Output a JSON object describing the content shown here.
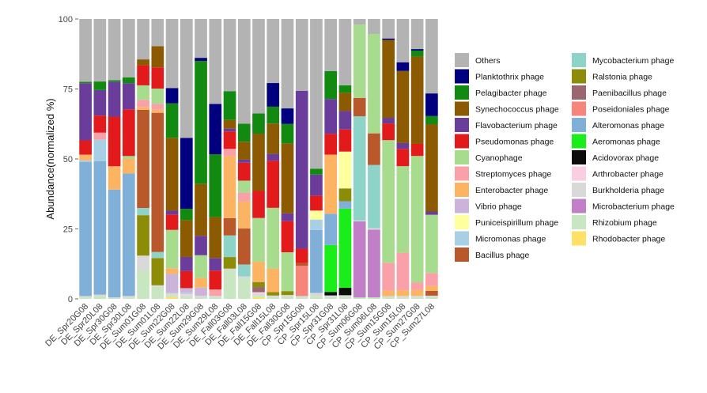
{
  "chart_data": {
    "type": "bar",
    "stacked": true,
    "ylabel": "Abundance(normalized %)",
    "xlabel": "",
    "ylim": [
      0,
      100
    ],
    "yticks": [
      0,
      25,
      50,
      75,
      100
    ],
    "grid": false,
    "legend_position": "right",
    "categories": [
      "DE_Spr20G08",
      "DE_Spr20L08",
      "DE_Spr30G08",
      "DE_Spr30L08",
      "DE_Sum01G08",
      "DE_Sum01L08",
      "DE_Sum22G08",
      "DE_Sum22L08",
      "DE_Sum29G08",
      "DE_Sum29L08",
      "DE_Fall03G08",
      "DE_Fall03L08",
      "DE_Fall15G08",
      "DE_Fall15L08",
      "DE_Fall30G08",
      "CP_Spr15G08",
      "CP_Spr15L08",
      "CP_Spr31G08",
      "CP_Spr31L08",
      "CP_Sum06G08",
      "CP_Sum06L08",
      "CP_Sum15G08",
      "CP_Sum15L08",
      "CP_Sum27G08",
      "CP_Sum27L08"
    ],
    "series": [
      {
        "name": "Rhodobacter phage",
        "color": "#ffe066",
        "values": [
          0,
          0,
          0,
          0,
          0,
          0,
          0.5,
          0,
          0,
          0,
          0,
          0,
          0.5,
          0,
          0,
          0,
          0,
          0,
          0,
          0,
          0,
          0,
          0,
          0,
          0
        ]
      },
      {
        "name": "Rhizobium phage",
        "color": "#c9e6c3",
        "values": [
          0.5,
          1,
          0.3,
          0.5,
          10,
          4,
          0.5,
          0.8,
          0.5,
          0.5,
          10,
          7,
          0.5,
          0.5,
          0.5,
          0.5,
          1,
          0.5,
          0.5,
          0.5,
          0.5,
          0.5,
          0.5,
          0.5,
          0.5
        ]
      },
      {
        "name": "Microbacterium phage",
        "color": "#c07fc7",
        "values": [
          0,
          0,
          0,
          0,
          0,
          0,
          0,
          0,
          0,
          0,
          0,
          0,
          0,
          0,
          0,
          0,
          0,
          0,
          0,
          27,
          22.5,
          0,
          0,
          0,
          0
        ]
      },
      {
        "name": "Burkholderia phage",
        "color": "#d9d9d9",
        "values": [
          0.5,
          0.5,
          0.2,
          0.5,
          5,
          0.5,
          0.5,
          0.5,
          0.5,
          0.5,
          0.5,
          0.5,
          0.5,
          0.5,
          0.5,
          0.5,
          1,
          0.5,
          0.5,
          0.3,
          0.5,
          0.5,
          0.5,
          0.5,
          0.5
        ]
      },
      {
        "name": "Arthrobacter phage",
        "color": "#fbcde1",
        "values": [
          0,
          0,
          0,
          0,
          0,
          0,
          0,
          0.5,
          0,
          0,
          0,
          0,
          0.5,
          0,
          0,
          0,
          0,
          0,
          0,
          0,
          0,
          0,
          0,
          0,
          0
        ]
      },
      {
        "name": "Acidovorax phage",
        "color": "#0c0c0c",
        "values": [
          0,
          0,
          0,
          0,
          0,
          0,
          0,
          0,
          0,
          0,
          0,
          0,
          0,
          0,
          0,
          0,
          0,
          1,
          2,
          0,
          0,
          0,
          0,
          0,
          0
        ]
      },
      {
        "name": "Aeromonas phage",
        "color": "#1aee1a",
        "values": [
          0,
          0,
          0,
          0,
          0,
          0,
          0,
          0,
          0,
          0,
          0,
          0,
          0,
          0,
          0,
          0,
          0,
          13.5,
          21.5,
          0,
          0,
          0,
          0,
          0,
          0
        ]
      },
      {
        "name": "Alteromonas phage",
        "color": "#80b0d8",
        "values": [
          47,
          47,
          37,
          42,
          0,
          0,
          0,
          0,
          0,
          0,
          0,
          0,
          0,
          0,
          0,
          0,
          21,
          9,
          2,
          0,
          0,
          0,
          0,
          0,
          0
        ]
      },
      {
        "name": "Poseidoniales phage",
        "color": "#f7857b",
        "values": [
          0,
          0,
          0,
          0,
          0,
          0,
          0,
          0,
          0,
          0,
          0,
          0,
          0,
          0,
          0,
          10.5,
          0,
          0,
          0,
          0,
          0,
          0,
          0,
          0,
          0
        ]
      },
      {
        "name": "Paenibacillus phage",
        "color": "#9b666f",
        "values": [
          0,
          0,
          0,
          0,
          0,
          0,
          0,
          0,
          0,
          0,
          0,
          0,
          1.5,
          0,
          0,
          0,
          0,
          0,
          0,
          0,
          0,
          0,
          0,
          0,
          0
        ]
      },
      {
        "name": "Ralstonia phage",
        "color": "#8c8c07",
        "values": [
          0,
          0,
          0,
          0,
          14,
          9,
          0,
          0,
          0,
          0,
          4,
          0,
          1.5,
          1,
          1,
          0,
          0,
          0,
          3.5,
          0,
          0,
          0,
          0,
          0,
          0
        ]
      },
      {
        "name": "Mycobacterium phage",
        "color": "#8ed3c8",
        "values": [
          0,
          0,
          0,
          0,
          2.5,
          2,
          0,
          0,
          0,
          0,
          7.5,
          4,
          0,
          0,
          0,
          0,
          0,
          0,
          0,
          37,
          21,
          0,
          0,
          0,
          0
        ]
      },
      {
        "name": "Bacillus phage",
        "color": "#b9582a",
        "values": [
          0,
          0,
          0,
          0,
          34,
          46,
          0,
          0,
          0,
          0,
          6,
          12,
          0,
          0,
          0,
          1,
          0,
          0,
          0,
          6.5,
          10.5,
          0,
          0,
          0,
          1.5
        ]
      },
      {
        "name": "Micromonas phage",
        "color": "#a8cfe4",
        "values": [
          0.5,
          7.5,
          0,
          0,
          0,
          0,
          0,
          0.5,
          0,
          0,
          0,
          0,
          0,
          0,
          0,
          0,
          3.5,
          0,
          0,
          0,
          0,
          0,
          0,
          0,
          0
        ]
      },
      {
        "name": "Puniceispirillum phage",
        "color": "#feff9d",
        "values": [
          0,
          0,
          0,
          0,
          0,
          0,
          0,
          0,
          0,
          0,
          0,
          0,
          0,
          0,
          0,
          0,
          3,
          0,
          10,
          0,
          0,
          0,
          0,
          0,
          0
        ]
      },
      {
        "name": "Vibrio phage",
        "color": "#cbb4d9",
        "values": [
          0,
          0,
          0,
          0,
          0,
          0,
          5,
          1.5,
          2.5,
          0,
          0,
          0,
          0,
          0,
          0,
          0,
          0,
          0,
          0,
          0,
          0,
          0,
          0,
          0,
          0
        ]
      },
      {
        "name": "Enterobacter phage",
        "color": "#fcb463",
        "values": [
          2,
          0,
          8,
          5,
          1,
          1,
          1.5,
          0,
          3,
          0,
          21.5,
          9,
          6,
          7,
          0,
          0,
          0,
          17,
          0,
          0,
          0,
          2,
          2,
          2,
          1.5
        ]
      },
      {
        "name": "Streptomyces phage",
        "color": "#f9a0a9",
        "values": [
          0,
          2.5,
          0,
          0,
          2.5,
          2,
          0,
          0,
          0,
          2,
          2.5,
          3,
          0,
          0,
          0,
          0,
          0,
          0,
          0,
          0,
          0,
          10,
          13,
          2.5,
          4
        ]
      },
      {
        "name": "Cyanophage",
        "color": "#a7db8d",
        "values": [
          0,
          0,
          0,
          1,
          5,
          5,
          10,
          0,
          7,
          0,
          0,
          4,
          13,
          18,
          10,
          0,
          0,
          0,
          0,
          26,
          33,
          44,
          30,
          42,
          18
        ]
      },
      {
        "name": "Pseudomonas phage",
        "color": "#e31a1c",
        "values": [
          5,
          6,
          17,
          16,
          7,
          7,
          4,
          6,
          0,
          6,
          6,
          6,
          8,
          14,
          8,
          5,
          5,
          6,
          6,
          0,
          0,
          6,
          6,
          4,
          0
        ]
      },
      {
        "name": "Flavobacterium phage",
        "color": "#6a3d9a",
        "values": [
          20,
          9,
          12,
          9,
          0,
          0,
          1,
          5,
          6,
          4,
          1,
          1,
          0,
          2,
          2,
          55,
          7,
          10,
          5,
          0,
          0,
          2,
          2,
          0,
          1
        ]
      },
      {
        "name": "Synechococcus phage",
        "color": "#8c5a00",
        "values": [
          0,
          0,
          0,
          0,
          2,
          7,
          19,
          13,
          16,
          13,
          3,
          6,
          17,
          9,
          18,
          0,
          0,
          0,
          5,
          0,
          0,
          28,
          25,
          29,
          27
        ]
      },
      {
        "name": "Pelagibacter phage",
        "color": "#128a12",
        "values": [
          0.5,
          3,
          0.5,
          2,
          0,
          0,
          9,
          4,
          38,
          20,
          10,
          6,
          6,
          5,
          5,
          0,
          2,
          8,
          2,
          0,
          0,
          0,
          0,
          2,
          2.5
        ]
      },
      {
        "name": "Planktothrix phage",
        "color": "#00007f",
        "values": [
          0,
          0,
          0,
          0,
          0,
          0,
          4,
          25,
          1,
          16,
          0,
          0,
          0,
          7,
          4,
          0,
          0,
          0,
          0,
          0,
          0,
          0.5,
          3,
          0.5,
          7
        ]
      },
      {
        "name": "Others",
        "color": "#b3b3b3",
        "values": [
          22,
          22,
          21,
          20,
          14,
          9,
          18,
          42,
          12,
          27,
          25,
          35,
          28,
          19,
          23,
          25,
          50,
          15,
          18,
          2,
          5,
          7,
          15,
          10,
          23
        ]
      }
    ]
  },
  "legend": {
    "columns": [
      [
        "Others",
        "Planktothrix phage",
        "Pelagibacter phage",
        "Synechococcus phage",
        "Flavobacterium phage",
        "Pseudomonas phage",
        "Cyanophage",
        "Streptomyces phage",
        "Enterobacter phage",
        "Vibrio phage",
        "Puniceispirillum phage",
        "Micromonas phage",
        "Bacillus phage"
      ],
      [
        "Mycobacterium phage",
        "Ralstonia phage",
        "Paenibacillus phage",
        "Poseidoniales phage",
        "Alteromonas phage",
        "Aeromonas phage",
        "Acidovorax phage",
        "Arthrobacter phage",
        "Burkholderia phage",
        "Microbacterium phage",
        "Rhizobium phage",
        "Rhodobacter phage"
      ]
    ]
  }
}
